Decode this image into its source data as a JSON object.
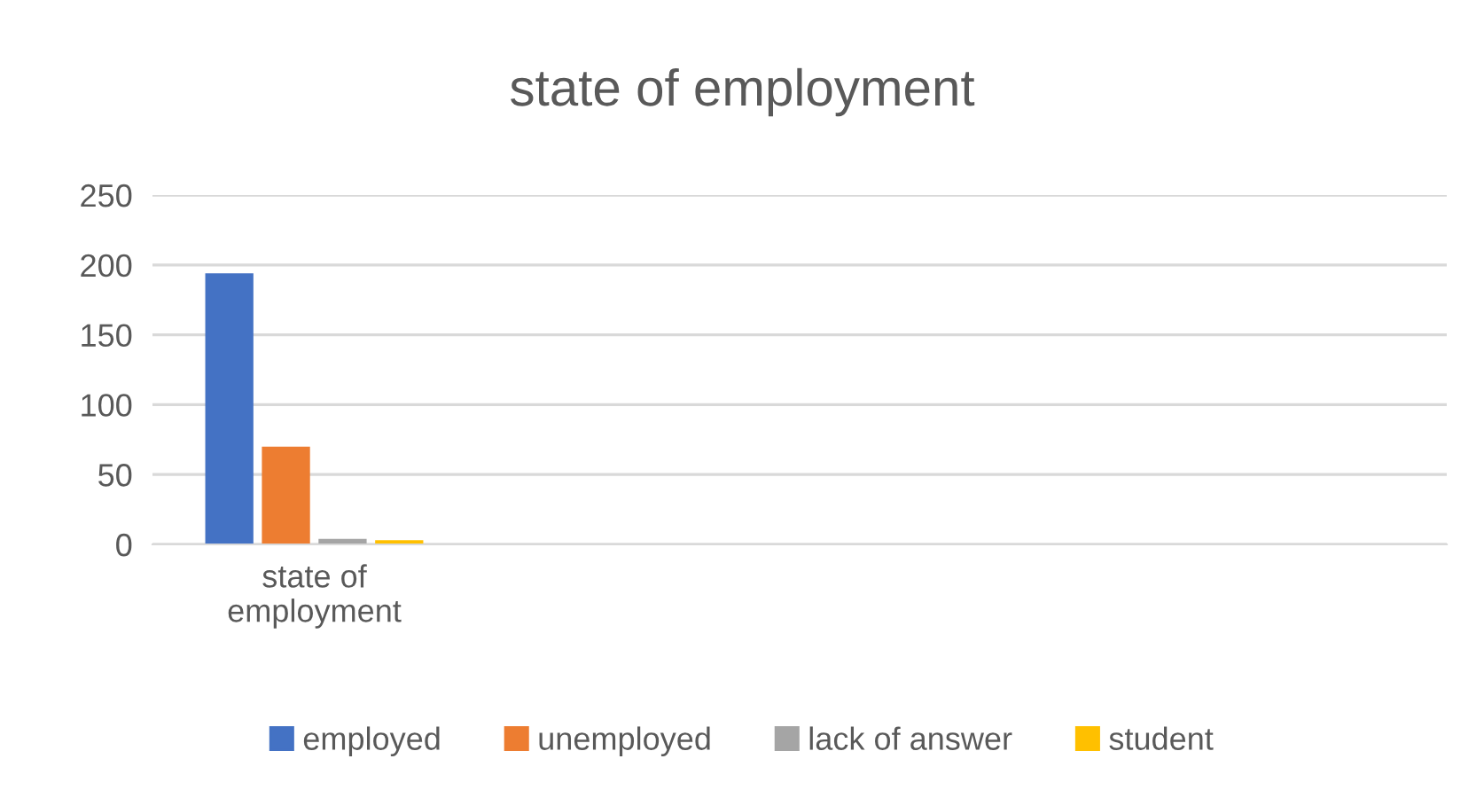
{
  "chart_data": {
    "type": "bar",
    "title": "state of employment",
    "categories": [
      "state of employment",
      null,
      null,
      null
    ],
    "series": [
      {
        "name": "employed",
        "color": "#4472c4",
        "values": [
          194,
          null,
          null,
          null
        ]
      },
      {
        "name": "unemployed",
        "color": "#ed7d31",
        "values": [
          70,
          null,
          null,
          null
        ]
      },
      {
        "name": "lack of answer",
        "color": "#a5a5a5",
        "values": [
          4,
          null,
          null,
          null
        ]
      },
      {
        "name": "student",
        "color": "#ffc000",
        "values": [
          3,
          null,
          null,
          null
        ]
      }
    ],
    "ylim": [
      0,
      250
    ],
    "yticks": [
      0,
      50,
      100,
      150,
      200,
      250
    ],
    "grid": "y",
    "legend": "bottom"
  }
}
